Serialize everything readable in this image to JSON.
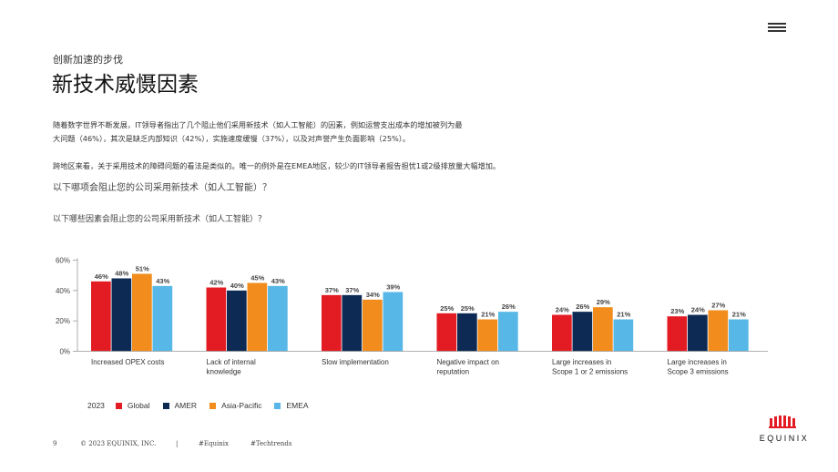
{
  "header": {
    "kicker": "创新加速的步伐",
    "title": "新技术威慑因素",
    "menu_icon": "hamburger-menu-icon"
  },
  "body": {
    "para1_line1": "随着数字世界不断发展，IT领导者指出了几个阻止他们采用新技术（如人工智能）的因素，例如运营支出成本的增加被列为最",
    "para1_line2": "大问题（46%），其次是缺乏内部知识（42%），实施速度缓慢（37%），以及对声誉产生负面影响（25%）。",
    "para2": "跨地区来看，关于采用技术的障碍问题的看法是类似的。唯一的例外是在EMEA地区，较少的IT领导者报告担忧1或2级排放量大幅增加。",
    "question1": "以下哪项会阻止您的公司采用新技术（如人工智能）？",
    "question2": "以下哪些因素会阻止您的公司采用新技术（如人工智能）？"
  },
  "chart_data": {
    "type": "bar",
    "categories": [
      [
        "Increased OPEX costs"
      ],
      [
        "Lack of internal",
        "knowledge"
      ],
      [
        "Slow implementation"
      ],
      [
        "Negative impact on",
        "reputation"
      ],
      [
        "Large increases in",
        "Scope 1 or 2 emissions"
      ],
      [
        "Large increases in",
        "Scope 3 emissions"
      ]
    ],
    "series": [
      {
        "name": "Global",
        "color": "#e31b23",
        "values": [
          46,
          42,
          37,
          25,
          24,
          23
        ]
      },
      {
        "name": "AMER",
        "color": "#0d2a55",
        "values": [
          48,
          40,
          37,
          25,
          26,
          24
        ]
      },
      {
        "name": "Asia-Pacific",
        "color": "#f28c1c",
        "values": [
          51,
          45,
          34,
          21,
          29,
          27
        ]
      },
      {
        "name": "EMEA",
        "color": "#57b7e6",
        "values": [
          43,
          43,
          39,
          26,
          21,
          21
        ]
      }
    ],
    "yticks": [
      "0%",
      "20%",
      "40%",
      "60%"
    ],
    "ylim": [
      0,
      60
    ],
    "value_suffix": "%",
    "legend_year": "2023",
    "legend_position": "bottom-left",
    "grid": false
  },
  "footer": {
    "page_number": "9",
    "copyright": "© 2023 EQUINIX, INC.",
    "separator": "|",
    "tag1": "#Equinix",
    "tag2": "#Techtrends"
  },
  "logo": {
    "text": "EQUINIX",
    "icon": "equinix-logo-icon",
    "color": "#e31b23"
  }
}
